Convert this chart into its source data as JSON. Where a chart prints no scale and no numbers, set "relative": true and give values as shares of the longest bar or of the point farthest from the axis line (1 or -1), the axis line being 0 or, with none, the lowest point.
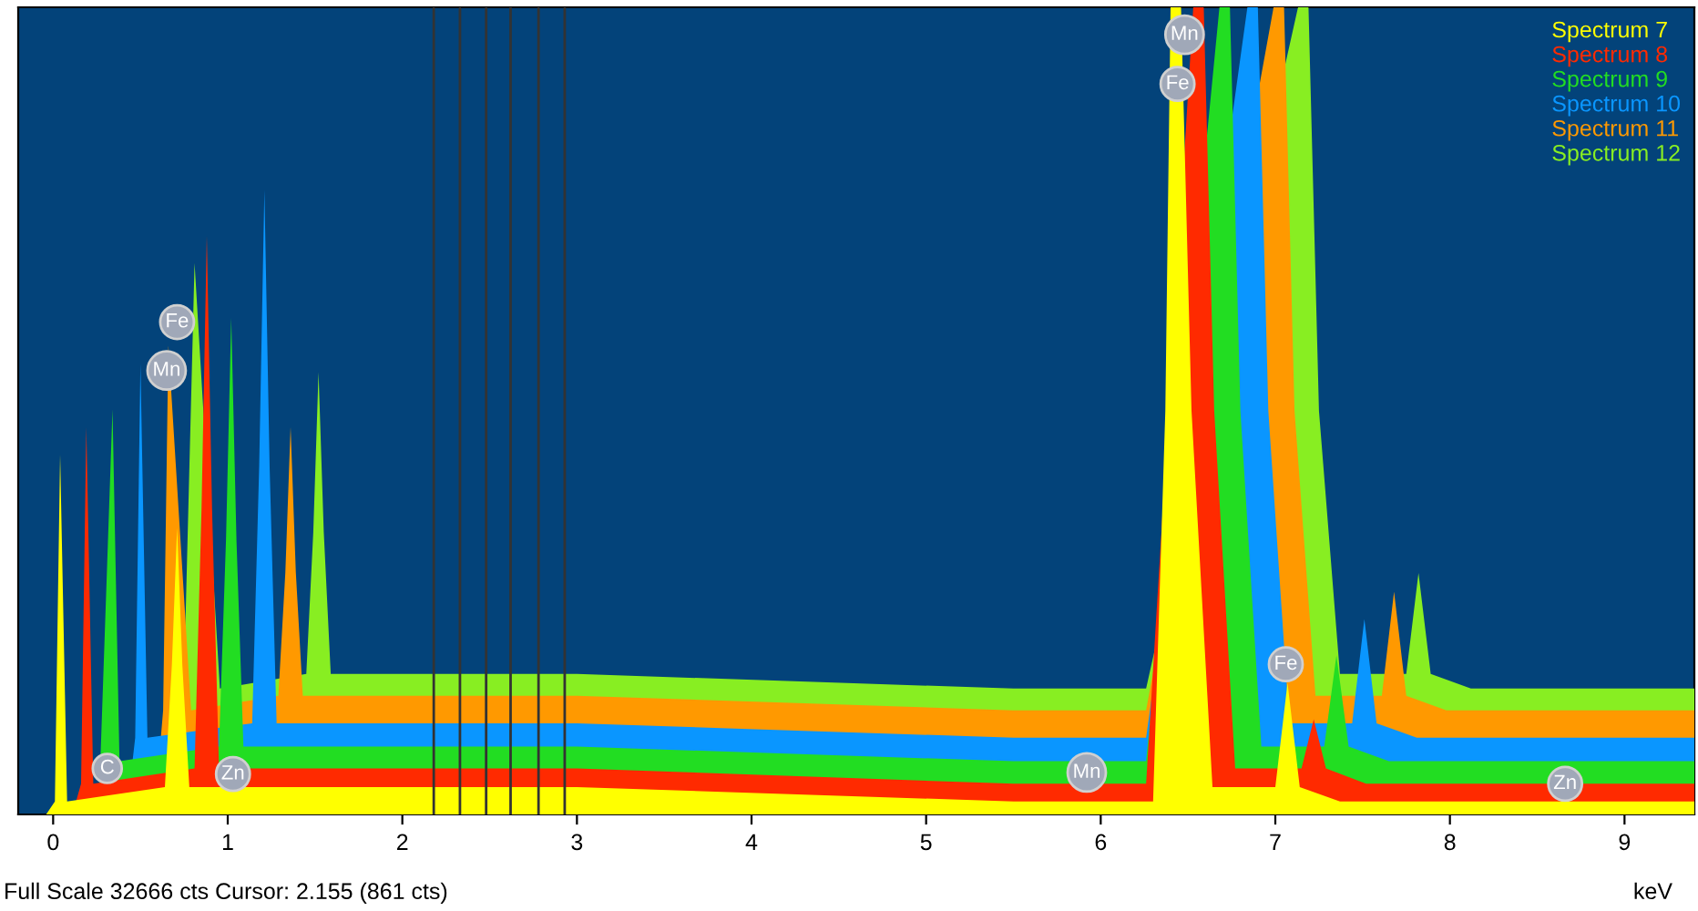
{
  "chart_data": {
    "type": "area",
    "relative": true,
    "xlabel": "keV",
    "xlim": [
      -0.2,
      9.4
    ],
    "xticks": [
      0,
      1,
      2,
      3,
      4,
      5,
      6,
      7,
      8,
      9
    ],
    "legend": "top right",
    "grid": false,
    "series": [
      {
        "name": "Spectrum 7",
        "color": "#ffff00",
        "x": [
          -0.04,
          0.01,
          0.04,
          0.08,
          0.64,
          0.68,
          0.71,
          0.74,
          0.78,
          3.0,
          5.5,
          6.3,
          6.37,
          6.4,
          6.46,
          6.52,
          6.64,
          7.0,
          7.07,
          7.14,
          7.37,
          9.4
        ],
        "values": [
          0,
          0.016,
          0.446,
          0.016,
          0.034,
          0.185,
          0.355,
          0.185,
          0.034,
          0.034,
          0.016,
          0.016,
          0.5,
          1,
          1,
          0.5,
          0.034,
          0.034,
          0.163,
          0.034,
          0.016,
          0.016
        ]
      },
      {
        "name": "Spectrum 8",
        "color": "#ff2a00",
        "x": [
          0.11,
          0.16,
          0.19,
          0.23,
          0.81,
          0.85,
          0.88,
          0.91,
          0.95,
          3.0,
          5.5,
          6.26,
          6.48,
          6.53,
          6.59,
          6.65,
          6.77,
          7.15,
          7.22,
          7.29,
          7.52,
          9.4
        ],
        "values": [
          0,
          0.038,
          0.48,
          0.038,
          0.057,
          0.38,
          0.717,
          0.38,
          0.057,
          0.057,
          0.038,
          0.038,
          null,
          1,
          1,
          0.5,
          0.057,
          0.057,
          0.118,
          0.057,
          0.038,
          0.038
        ]
      },
      {
        "name": "Spectrum 9",
        "color": "#22dd22",
        "x": [
          0.26,
          0.31,
          0.34,
          0.38,
          0.95,
          0.99,
          1.02,
          1.05,
          1.09,
          3.0,
          5.5,
          6.26,
          6.63,
          6.68,
          6.74,
          6.8,
          6.92,
          7.28,
          7.35,
          7.42,
          7.65,
          9.4
        ],
        "values": [
          0,
          null,
          0.502,
          0.066,
          0.084,
          0.34,
          0.615,
          0.34,
          0.084,
          0.084,
          0.066,
          0.066,
          null,
          1,
          1,
          0.5,
          0.084,
          0.084,
          0.197,
          0.084,
          0.066,
          0.066
        ]
      },
      {
        "name": "Spectrum 10",
        "color": "#0a96ff",
        "x": [
          0.42,
          0.47,
          0.5,
          0.54,
          1.14,
          1.18,
          1.21,
          1.24,
          1.28,
          3.0,
          5.5,
          6.26,
          6.79,
          6.84,
          6.9,
          6.96,
          7.08,
          7.44,
          7.51,
          7.58,
          7.81,
          9.4
        ],
        "values": [
          0,
          0.095,
          0.559,
          0.095,
          0.113,
          0.43,
          0.774,
          0.43,
          0.113,
          0.113,
          0.095,
          0.095,
          null,
          1,
          1,
          0.5,
          0.113,
          0.113,
          0.242,
          0.113,
          0.095,
          0.095
        ]
      },
      {
        "name": "Spectrum 11",
        "color": "#ff9900",
        "x": [
          0.58,
          0.63,
          0.66,
          0.79,
          1.29,
          1.33,
          1.36,
          1.39,
          1.43,
          3.0,
          5.5,
          6.26,
          6.94,
          6.99,
          7.05,
          7.11,
          7.23,
          7.61,
          7.68,
          7.75,
          7.98,
          9.4
        ],
        "values": [
          0,
          0.129,
          0.581,
          0.129,
          0.147,
          0.3,
          0.48,
          0.3,
          0.147,
          0.147,
          0.129,
          0.129,
          null,
          1,
          1,
          0.5,
          0.147,
          0.147,
          0.276,
          0.147,
          0.129,
          0.129
        ]
      },
      {
        "name": "Spectrum 12",
        "color": "#88ee22",
        "x": [
          0.73,
          0.78,
          0.81,
          0.955,
          1.45,
          1.49,
          1.52,
          1.55,
          1.59,
          3.0,
          5.5,
          6.26,
          7.08,
          7.13,
          7.19,
          7.25,
          7.37,
          7.75,
          7.82,
          7.89,
          8.12,
          9.4
        ],
        "values": [
          0,
          null,
          0.683,
          0.156,
          0.174,
          0.35,
          0.548,
          0.35,
          0.174,
          0.174,
          0.156,
          0.156,
          null,
          1,
          1,
          0.5,
          0.174,
          0.174,
          0.299,
          0.174,
          0.156,
          0.156
        ]
      }
    ],
    "ref_lines": [
      {
        "axis": "x",
        "value": 2.18,
        "color": "#333333"
      },
      {
        "axis": "x",
        "value": 2.33,
        "color": "#333333"
      },
      {
        "axis": "x",
        "value": 2.48,
        "color": "#333333"
      },
      {
        "axis": "x",
        "value": 2.62,
        "color": "#333333"
      },
      {
        "axis": "x",
        "value": 2.78,
        "color": "#333333"
      },
      {
        "axis": "x",
        "value": 2.93,
        "color": "#333333"
      }
    ],
    "annotations": [
      {
        "text": "Fe",
        "x": 0.71,
        "y": 0.61
      },
      {
        "text": "Mn",
        "x": 0.65,
        "y": 0.55
      },
      {
        "text": "C",
        "x": 0.31,
        "y": 0.057
      },
      {
        "text": "Zn",
        "x": 1.03,
        "y": 0.05
      },
      {
        "text": "Mn",
        "x": 5.92,
        "y": 0.052
      },
      {
        "text": "Mn",
        "x": 6.48,
        "y": 0.966
      },
      {
        "text": "Fe",
        "x": 6.44,
        "y": 0.905
      },
      {
        "text": "Fe",
        "x": 7.06,
        "y": 0.186
      },
      {
        "text": "Zn",
        "x": 8.66,
        "y": 0.038
      },
      "Full Scale 32666 cts Cursor: 2.155 (861 cts)"
    ]
  }
}
